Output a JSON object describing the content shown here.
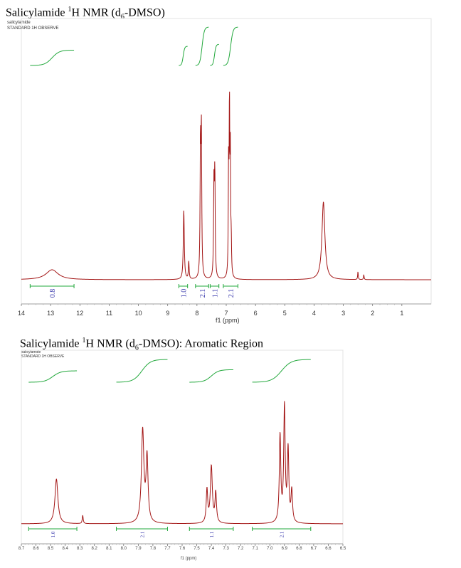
{
  "chart_data": [
    {
      "type": "line",
      "title_main": "Salicylamide ",
      "title_sup": "1",
      "title_mid": "H NMR (d",
      "title_sub": "6",
      "title_end": "-DMSO)",
      "sample": "salicylamide",
      "experiment": "STANDARD 1H OBSERVE",
      "xlabel": "f1 (ppm)",
      "xlim": [
        14,
        0
      ],
      "xticks": [
        "14",
        "13",
        "12",
        "11",
        "10",
        "9",
        "8",
        "7",
        "6",
        "5",
        "4",
        "3",
        "2",
        "1"
      ],
      "tick_values": [
        14,
        13,
        12,
        11,
        10,
        9,
        8,
        7,
        6,
        5,
        4,
        3,
        2,
        1
      ],
      "line_color": "#a31515",
      "integral_color": "#22a83c",
      "label_color": "#3333aa",
      "peaks": [
        {
          "ppm": 12.95,
          "height": 0.05,
          "width": 0.25
        },
        {
          "ppm": 8.45,
          "height": 0.35,
          "width": 0.02
        },
        {
          "ppm": 8.28,
          "height": 0.09,
          "width": 0.015
        },
        {
          "ppm": 7.88,
          "height": 0.65,
          "width": 0.015
        },
        {
          "ppm": 7.85,
          "height": 0.71,
          "width": 0.015
        },
        {
          "ppm": 7.42,
          "height": 0.45,
          "width": 0.015
        },
        {
          "ppm": 7.39,
          "height": 0.51,
          "width": 0.015
        },
        {
          "ppm": 6.92,
          "height": 0.54,
          "width": 0.012
        },
        {
          "ppm": 6.89,
          "height": 0.85,
          "width": 0.012
        },
        {
          "ppm": 6.86,
          "height": 0.58,
          "width": 0.012
        },
        {
          "ppm": 6.83,
          "height": 0.16,
          "width": 0.012
        },
        {
          "ppm": 3.68,
          "height": 0.39,
          "width": 0.06
        },
        {
          "ppm": 2.5,
          "height": 0.04,
          "width": 0.012
        },
        {
          "ppm": 2.3,
          "height": 0.025,
          "width": 0.012
        }
      ],
      "integrals": [
        {
          "from": 13.7,
          "to": 12.2,
          "label": "0.8",
          "step": 0.4
        },
        {
          "from": 8.62,
          "to": 8.32,
          "label": "1.0",
          "step": 0.5
        },
        {
          "from": 8.05,
          "to": 7.6,
          "label": "2.1",
          "step": 1.0
        },
        {
          "from": 7.55,
          "to": 7.25,
          "label": "1.1",
          "step": 0.55
        },
        {
          "from": 7.1,
          "to": 6.6,
          "label": "2.1",
          "step": 1.0
        }
      ]
    },
    {
      "type": "line",
      "title_main": "Salicylamide ",
      "title_sup": "1",
      "title_mid": "H NMR (d",
      "title_sub": "6",
      "title_end": "-DMSO):  Aromatic Region",
      "sample": "salicylamide",
      "experiment": "STANDARD 1H OBSERVE",
      "xlabel": "f1 (ppm)",
      "xlim": [
        8.7,
        6.5
      ],
      "xticks": [
        "8.7",
        "8.6",
        "8.5",
        "8.4",
        "8.3",
        "8.2",
        "8.1",
        "8.0",
        "7.9",
        "7.8",
        "7.7",
        "7.6",
        "7.5",
        "7.4",
        "7.3",
        "7.2",
        "7.1",
        "7.0",
        "6.9",
        "6.8",
        "6.7",
        "6.6",
        "6.5"
      ],
      "tick_values": [
        8.7,
        8.6,
        8.5,
        8.4,
        8.3,
        8.2,
        8.1,
        8.0,
        7.9,
        7.8,
        7.7,
        7.6,
        7.5,
        7.4,
        7.3,
        7.2,
        7.1,
        7.0,
        6.9,
        6.8,
        6.7,
        6.6,
        6.5
      ],
      "line_color": "#a31515",
      "integral_color": "#22a83c",
      "label_color": "#3333aa",
      "peaks": [
        {
          "ppm": 8.46,
          "height": 0.3,
          "width": 0.012
        },
        {
          "ppm": 8.28,
          "height": 0.055,
          "width": 0.004
        },
        {
          "ppm": 7.87,
          "height": 0.62,
          "width": 0.01
        },
        {
          "ppm": 7.84,
          "height": 0.43,
          "width": 0.008
        },
        {
          "ppm": 7.43,
          "height": 0.22,
          "width": 0.006
        },
        {
          "ppm": 7.4,
          "height": 0.38,
          "width": 0.008
        },
        {
          "ppm": 7.37,
          "height": 0.2,
          "width": 0.006
        },
        {
          "ppm": 6.93,
          "height": 0.58,
          "width": 0.006
        },
        {
          "ppm": 6.9,
          "height": 0.77,
          "width": 0.006
        },
        {
          "ppm": 6.875,
          "height": 0.48,
          "width": 0.006
        },
        {
          "ppm": 6.85,
          "height": 0.21,
          "width": 0.006
        }
      ],
      "integrals": [
        {
          "from": 8.65,
          "to": 8.32,
          "label": "1.0",
          "step": 0.5
        },
        {
          "from": 8.05,
          "to": 7.7,
          "label": "2.1",
          "step": 1.0
        },
        {
          "from": 7.55,
          "to": 7.25,
          "label": "1.1",
          "step": 0.55
        },
        {
          "from": 7.12,
          "to": 6.72,
          "label": "2.1",
          "step": 1.0
        }
      ]
    }
  ]
}
